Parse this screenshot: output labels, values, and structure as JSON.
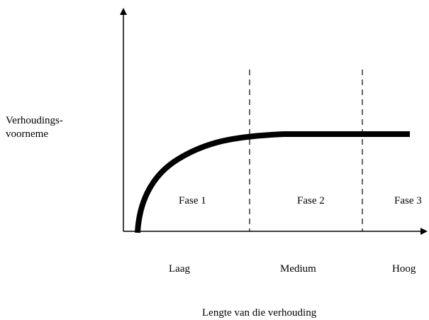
{
  "y_axis_label": [
    "Verhoudings-",
    "voorneme"
  ],
  "phases": [
    "Fase 1",
    "Fase 2",
    "Fase 3"
  ],
  "levels": [
    "Laag",
    "Medium",
    "Hoog"
  ],
  "x_axis_label": "Lengte van die verhouding"
}
